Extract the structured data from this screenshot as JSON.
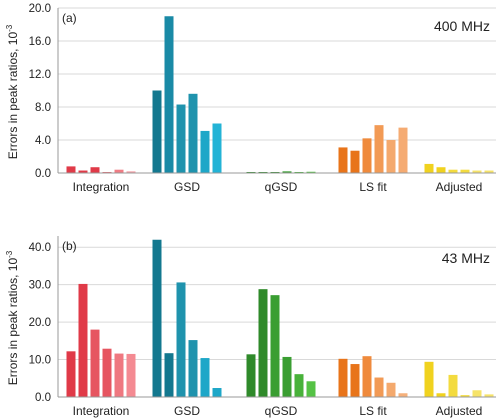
{
  "chart_data": [
    {
      "type": "bar",
      "panel_label": "(a)",
      "annotation": "400 MHz",
      "ylabel": "Errors in peak ratios, 10",
      "ylabel_exponent": "-3",
      "ylim": [
        0,
        20
      ],
      "yticks": [
        "0.0",
        "4.0",
        "8.0",
        "12.0",
        "16.0",
        "20.0"
      ],
      "grid": true,
      "groups": [
        {
          "label": "Integration",
          "values": [
            0.8,
            0.3,
            0.7,
            0.1,
            0.4,
            0.2
          ],
          "colors": [
            "#e03a48",
            "#e03a48",
            "#e03a48",
            "#e96a72",
            "#f07c84",
            "#f5a0a6"
          ]
        },
        {
          "label": "GSD",
          "values": [
            10.0,
            19.0,
            8.3,
            9.6,
            5.1,
            6.0
          ],
          "colors": [
            "#13788f",
            "#1a8aa6",
            "#1f93ad",
            "#1f93ad",
            "#1ea7c8",
            "#23b3d6"
          ]
        },
        {
          "label": "qGSD",
          "values": [
            0.05,
            0.05,
            0.05,
            0.2,
            0.05,
            0.15
          ],
          "colors": [
            "#2f8a2a",
            "#2f8a2a",
            "#2f8a2a",
            "#3a9e32",
            "#48b23a",
            "#55c245"
          ]
        },
        {
          "label": "LS fit",
          "values": [
            3.1,
            2.7,
            4.2,
            5.8,
            4.0,
            5.5
          ],
          "colors": [
            "#e8741a",
            "#e8741a",
            "#ef8a3c",
            "#f29a55",
            "#f4a96d",
            "#f5ab72"
          ]
        },
        {
          "label": "Adjusted",
          "values": [
            1.1,
            0.7,
            0.4,
            0.4,
            0.3,
            0.3
          ],
          "colors": [
            "#f0d21f",
            "#f0d21f",
            "#f3db3f",
            "#f3db3f",
            "#f6e369",
            "#f6e369"
          ]
        }
      ]
    },
    {
      "type": "bar",
      "panel_label": "(b)",
      "annotation": "43 MHz",
      "ylabel": "Errors in peak ratios, 10",
      "ylabel_exponent": "-3",
      "ylim": [
        0,
        43
      ],
      "yticks": [
        "0.0",
        "10.0",
        "20.0",
        "30.0",
        "40.0"
      ],
      "ytick_values": [
        0,
        10,
        20,
        30,
        40
      ],
      "grid": true,
      "groups": [
        {
          "label": "Integration",
          "values": [
            12.2,
            30.2,
            18.0,
            12.9,
            11.6,
            11.5
          ],
          "colors": [
            "#e03a48",
            "#e03a48",
            "#e65560",
            "#e65560",
            "#ef7880",
            "#f48a92"
          ]
        },
        {
          "label": "GSD",
          "values": [
            42.0,
            11.7,
            30.6,
            15.2,
            10.4,
            2.4
          ],
          "colors": [
            "#13788f",
            "#13788f",
            "#1f93ad",
            "#1f93ad",
            "#1ea7c8",
            "#1ea7c8"
          ]
        },
        {
          "label": "qGSD",
          "values": [
            11.4,
            28.8,
            27.2,
            10.7,
            6.1,
            4.2
          ],
          "colors": [
            "#2f8a2a",
            "#2f8a2a",
            "#3a9e32",
            "#3a9e32",
            "#48b23a",
            "#55c245"
          ]
        },
        {
          "label": "LS fit",
          "values": [
            10.2,
            8.8,
            10.9,
            5.2,
            3.8,
            1.0
          ],
          "colors": [
            "#e8741a",
            "#e8741a",
            "#ef8a3c",
            "#f29a55",
            "#f4a96d",
            "#f5b07b"
          ]
        },
        {
          "label": "Adjusted",
          "values": [
            9.4,
            1.0,
            5.9,
            0.5,
            1.8,
            0.7
          ],
          "colors": [
            "#f0d21f",
            "#f0d21f",
            "#f3db3f",
            "#f3db3f",
            "#f6e369",
            "#f6e369"
          ]
        }
      ]
    }
  ]
}
